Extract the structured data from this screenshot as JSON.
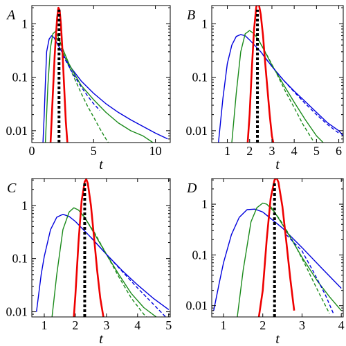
{
  "chart_data": [
    {
      "type": "line",
      "panel_label": "A",
      "xlabel": "t",
      "ylabel": "",
      "yscale": "log",
      "xlim": [
        0,
        11.2
      ],
      "ylim": [
        0.006,
        2.2
      ],
      "xticks": [
        0,
        5,
        10
      ],
      "xtick_labels": [
        "0",
        "5",
        "10"
      ],
      "yticks": [
        0.01,
        0.1,
        1
      ],
      "ytick_labels": [
        "0.01",
        "0.1",
        "1"
      ],
      "mean_line_x": 2.2,
      "series": [
        {
          "color": "#0000dd",
          "style": "solid",
          "x": [
            0.9,
            1.0,
            1.1,
            1.2,
            1.4,
            1.6,
            1.8,
            2.0,
            2.5,
            3.0,
            4.0,
            5.0,
            6.0,
            7.0,
            8.0,
            9.0,
            10.0,
            11.0
          ],
          "y": [
            0.006,
            0.02,
            0.08,
            0.3,
            0.52,
            0.6,
            0.55,
            0.45,
            0.28,
            0.17,
            0.085,
            0.05,
            0.032,
            0.022,
            0.016,
            0.012,
            0.009,
            0.007
          ]
        },
        {
          "color": "#1a8a1a",
          "style": "solid",
          "x": [
            1.1,
            1.3,
            1.5,
            1.7,
            1.9,
            2.1,
            2.3,
            2.6,
            3.0,
            3.5,
            4.0,
            5.0,
            6.0,
            7.0,
            8.0,
            9.0,
            9.8
          ],
          "y": [
            0.006,
            0.07,
            0.35,
            0.65,
            0.72,
            0.6,
            0.45,
            0.3,
            0.18,
            0.11,
            0.07,
            0.038,
            0.022,
            0.014,
            0.01,
            0.008,
            0.006
          ]
        },
        {
          "color": "#1a8a1a",
          "style": "dashed",
          "x": [
            2.0,
            2.5,
            3.0,
            3.5,
            4.0,
            4.5,
            5.0,
            5.5,
            6.0,
            6.4
          ],
          "y": [
            0.55,
            0.3,
            0.16,
            0.09,
            0.05,
            0.029,
            0.018,
            0.011,
            0.007,
            0.005
          ]
        },
        {
          "color": "#0000dd",
          "style": "dashed",
          "x": [
            2.5,
            3.0,
            3.5,
            4.0,
            4.5,
            5.0,
            5.5
          ],
          "y": [
            0.26,
            0.16,
            0.1,
            0.066,
            0.045,
            0.032,
            0.024
          ]
        },
        {
          "color": "#ee0000",
          "style": "solid",
          "x": [
            1.5,
            1.7,
            1.85,
            1.95,
            2.05,
            2.15,
            2.25,
            2.35,
            2.45,
            2.6,
            2.75,
            2.9
          ],
          "y": [
            0.005,
            0.05,
            0.25,
            0.6,
            1.3,
            2.0,
            1.8,
            1.0,
            0.4,
            0.08,
            0.015,
            0.005
          ]
        }
      ]
    },
    {
      "type": "line",
      "panel_label": "B",
      "xlabel": "t",
      "ylabel": "",
      "yscale": "log",
      "xlim": [
        0.3,
        6.2
      ],
      "ylim": [
        0.006,
        2.2
      ],
      "xticks": [
        1,
        2,
        3,
        4,
        5,
        6
      ],
      "xtick_labels": [
        "1",
        "2",
        "3",
        "4",
        "5",
        "6"
      ],
      "yticks": [
        0.01,
        0.1,
        1
      ],
      "ytick_labels": [
        "0.01",
        "0.1",
        "1"
      ],
      "mean_line_x": 2.35,
      "series": [
        {
          "color": "#0000dd",
          "style": "solid",
          "x": [
            0.6,
            0.8,
            1.0,
            1.2,
            1.4,
            1.6,
            1.8,
            2.0,
            2.5,
            3.0,
            3.5,
            4.0,
            4.5,
            5.0,
            5.5,
            6.0,
            6.2
          ],
          "y": [
            0.006,
            0.04,
            0.18,
            0.4,
            0.58,
            0.63,
            0.6,
            0.5,
            0.3,
            0.16,
            0.09,
            0.055,
            0.035,
            0.022,
            0.014,
            0.01,
            0.008
          ]
        },
        {
          "color": "#1a8a1a",
          "style": "solid",
          "x": [
            1.2,
            1.4,
            1.6,
            1.8,
            2.0,
            2.2,
            2.4,
            2.6,
            3.0,
            3.5,
            4.0,
            4.5,
            5.0,
            5.3
          ],
          "y": [
            0.006,
            0.05,
            0.3,
            0.65,
            0.75,
            0.65,
            0.5,
            0.35,
            0.17,
            0.075,
            0.034,
            0.016,
            0.008,
            0.006
          ]
        },
        {
          "color": "#1a8a1a",
          "style": "dashed",
          "x": [
            2.4,
            2.8,
            3.2,
            3.6,
            4.0,
            4.4,
            4.8,
            5.0
          ],
          "y": [
            0.5,
            0.25,
            0.12,
            0.055,
            0.027,
            0.013,
            0.007,
            0.005
          ]
        },
        {
          "color": "#0000dd",
          "style": "dashed",
          "x": [
            2.6,
            3.0,
            3.5,
            4.0,
            4.5,
            5.0,
            5.5,
            6.0
          ],
          "y": [
            0.26,
            0.16,
            0.09,
            0.053,
            0.032,
            0.02,
            0.013,
            0.009
          ]
        },
        {
          "color": "#ee0000",
          "style": "solid",
          "x": [
            1.9,
            2.0,
            2.1,
            2.2,
            2.3,
            2.4,
            2.5,
            2.6,
            2.7,
            2.8,
            2.9,
            3.0,
            3.1
          ],
          "y": [
            0.005,
            0.02,
            0.15,
            0.8,
            2.1,
            2.5,
            1.5,
            0.6,
            0.18,
            0.06,
            0.02,
            0.008,
            0.005
          ]
        }
      ]
    },
    {
      "type": "line",
      "panel_label": "C",
      "xlabel": "t",
      "ylabel": "",
      "yscale": "log",
      "xlim": [
        0.6,
        5.05
      ],
      "ylim": [
        0.008,
        3.2
      ],
      "xticks": [
        1,
        2,
        3,
        4,
        5
      ],
      "xtick_labels": [
        "1",
        "2",
        "3",
        "4",
        "5"
      ],
      "yticks": [
        0.01,
        0.1,
        1
      ],
      "ytick_labels": [
        "0.01",
        "0.1",
        "1"
      ],
      "mean_line_x": 2.3,
      "series": [
        {
          "color": "#0000dd",
          "style": "solid",
          "x": [
            0.75,
            0.9,
            1.0,
            1.2,
            1.4,
            1.6,
            1.8,
            2.0,
            2.5,
            3.0,
            3.5,
            4.0,
            4.5,
            5.0
          ],
          "y": [
            0.01,
            0.05,
            0.11,
            0.35,
            0.6,
            0.68,
            0.62,
            0.5,
            0.25,
            0.12,
            0.06,
            0.032,
            0.018,
            0.011
          ]
        },
        {
          "color": "#1a8a1a",
          "style": "solid",
          "x": [
            1.25,
            1.4,
            1.6,
            1.8,
            1.95,
            2.1,
            2.3,
            2.6,
            3.0,
            3.4,
            3.8,
            4.2,
            4.6
          ],
          "y": [
            0.008,
            0.05,
            0.35,
            0.75,
            0.9,
            0.82,
            0.6,
            0.3,
            0.12,
            0.05,
            0.022,
            0.012,
            0.008
          ]
        },
        {
          "color": "#1a8a1a",
          "style": "dashed",
          "x": [
            2.2,
            2.6,
            3.0,
            3.4,
            3.8,
            4.2,
            4.5
          ],
          "y": [
            0.7,
            0.32,
            0.12,
            0.045,
            0.018,
            0.009,
            0.006
          ]
        },
        {
          "color": "#0000dd",
          "style": "dashed",
          "x": [
            2.5,
            3.0,
            3.5,
            4.0,
            4.5,
            5.0
          ],
          "y": [
            0.25,
            0.12,
            0.058,
            0.028,
            0.014,
            0.007
          ]
        },
        {
          "color": "#ee0000",
          "style": "solid",
          "x": [
            1.95,
            2.0,
            2.1,
            2.2,
            2.3,
            2.35,
            2.4,
            2.5,
            2.6,
            2.7,
            2.8,
            2.9
          ],
          "y": [
            0.008,
            0.02,
            0.2,
            1.2,
            2.8,
            3.1,
            2.6,
            1.0,
            0.25,
            0.06,
            0.018,
            0.008
          ]
        }
      ]
    },
    {
      "type": "line",
      "panel_label": "D",
      "xlabel": "t",
      "ylabel": "",
      "yscale": "log",
      "xlim": [
        0.7,
        4.05
      ],
      "ylim": [
        0.006,
        3.2
      ],
      "xticks": [
        1,
        2,
        3,
        4
      ],
      "xtick_labels": [
        "1",
        "2",
        "3",
        "4"
      ],
      "yticks": [
        0.01,
        0.1,
        1
      ],
      "ytick_labels": [
        "0.01",
        "0.1",
        "1"
      ],
      "mean_line_x": 2.3,
      "series": [
        {
          "color": "#0000dd",
          "style": "solid",
          "x": [
            0.75,
            0.9,
            1.0,
            1.2,
            1.4,
            1.6,
            1.8,
            2.0,
            2.5,
            3.0,
            3.5,
            4.0
          ],
          "y": [
            0.008,
            0.03,
            0.07,
            0.25,
            0.55,
            0.78,
            0.8,
            0.7,
            0.34,
            0.14,
            0.055,
            0.022
          ]
        },
        {
          "color": "#1a8a1a",
          "style": "solid",
          "x": [
            1.35,
            1.5,
            1.7,
            1.85,
            2.0,
            2.1,
            2.3,
            2.6,
            3.0,
            3.4,
            3.7,
            4.0
          ],
          "y": [
            0.006,
            0.05,
            0.45,
            0.85,
            1.05,
            1.0,
            0.7,
            0.3,
            0.09,
            0.03,
            0.015,
            0.008
          ]
        },
        {
          "color": "#1a8a1a",
          "style": "dashed",
          "x": [
            2.2,
            2.5,
            2.8,
            3.1,
            3.4,
            3.7
          ],
          "y": [
            0.9,
            0.42,
            0.17,
            0.06,
            0.02,
            0.007
          ]
        },
        {
          "color": "#0000dd",
          "style": "dashed",
          "x": [
            2.6,
            3.0,
            3.3,
            3.6,
            3.8
          ],
          "y": [
            0.25,
            0.12,
            0.045,
            0.016,
            0.007
          ]
        },
        {
          "color": "#ee0000",
          "style": "solid",
          "x": [
            1.9,
            2.0,
            2.1,
            2.2,
            2.3,
            2.35,
            2.4,
            2.5,
            2.6,
            2.7,
            2.8
          ],
          "y": [
            0.006,
            0.02,
            0.2,
            1.3,
            3.0,
            3.3,
            2.7,
            0.9,
            0.18,
            0.035,
            0.008
          ]
        }
      ]
    }
  ]
}
